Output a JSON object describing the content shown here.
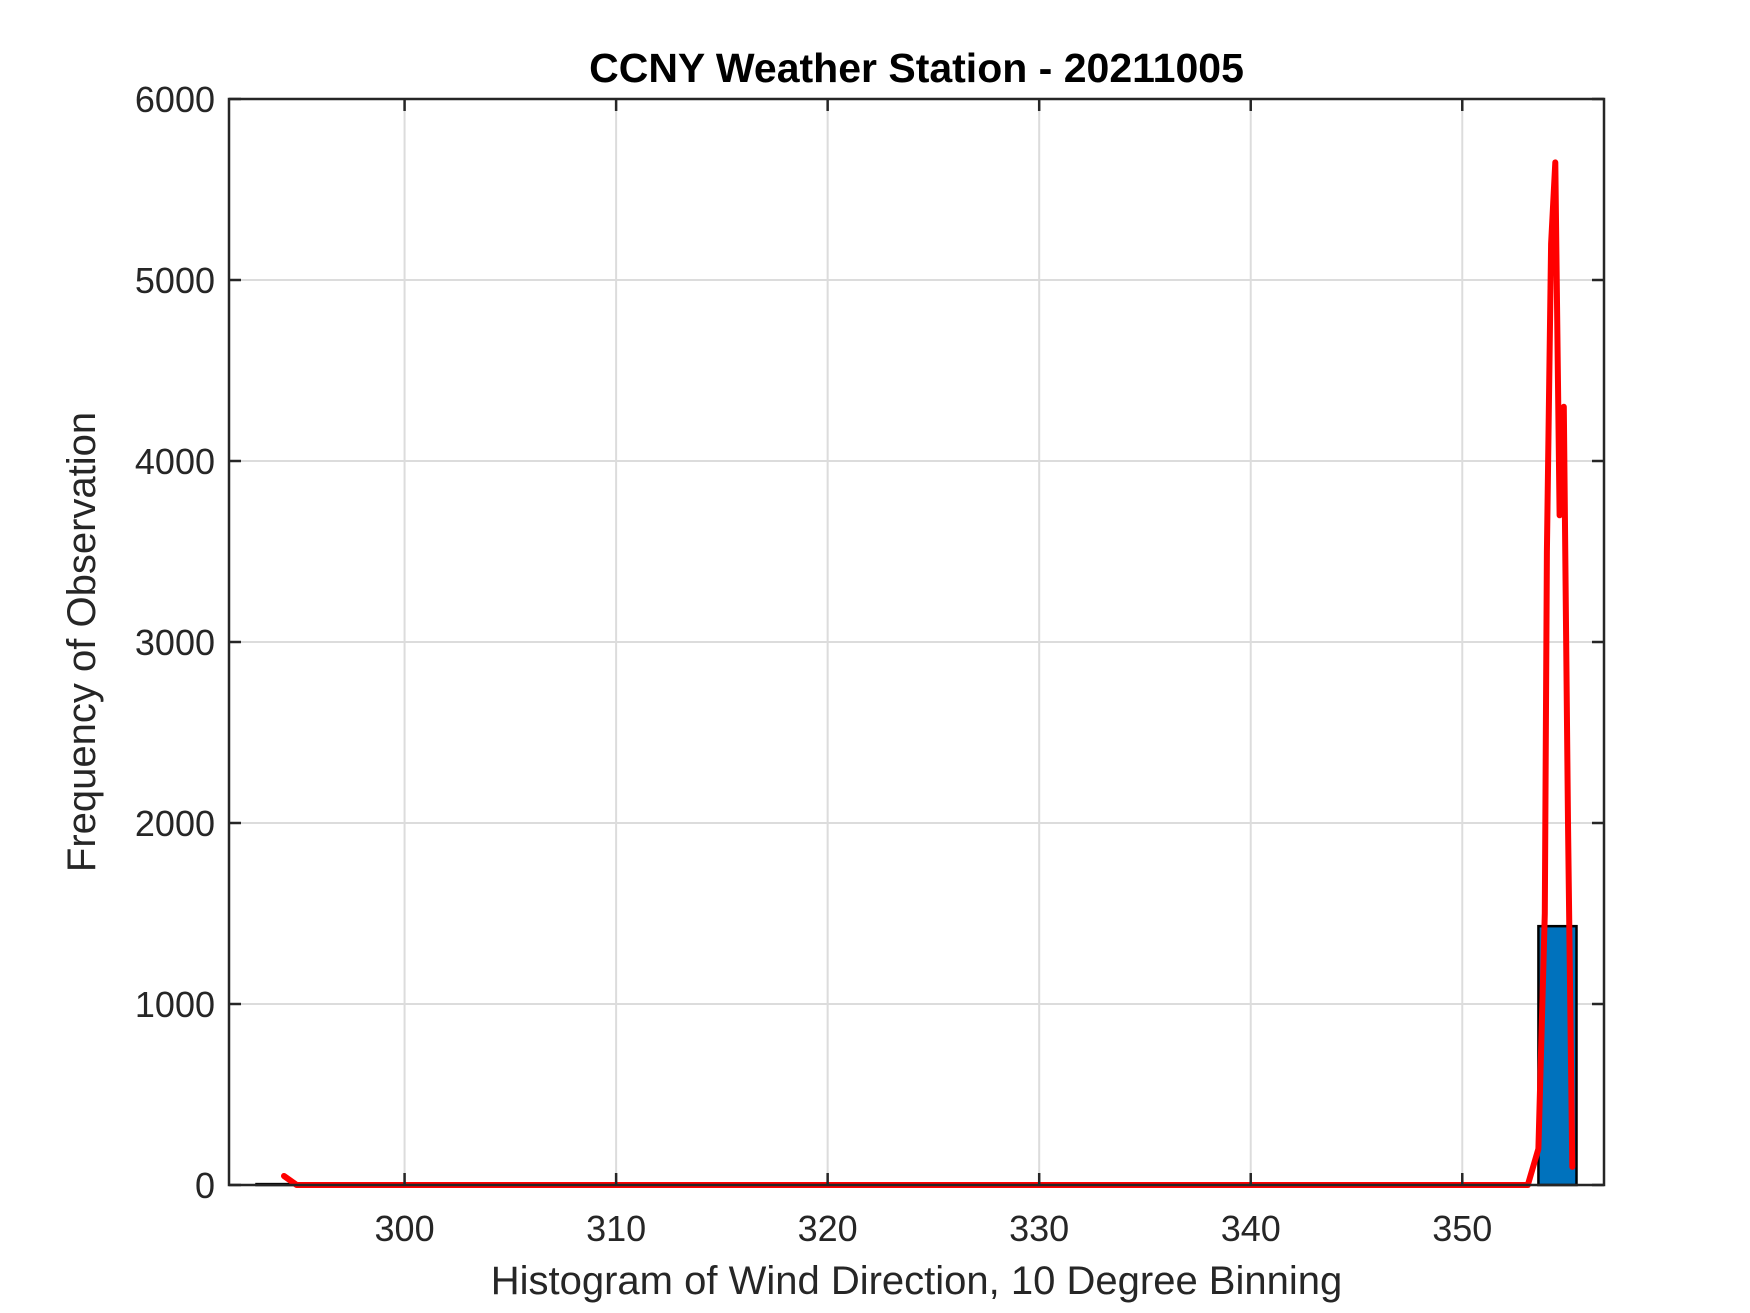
{
  "chart_data": {
    "type": "bar",
    "title": "CCNY Weather Station - 20211005",
    "xlabel": "Histogram of Wind Direction, 10 Degree Binning",
    "ylabel": "Frequency of Observation",
    "xlim": [
      291.7,
      356.7
    ],
    "ylim": [
      0,
      6000
    ],
    "xticks": [
      300,
      310,
      320,
      330,
      340,
      350
    ],
    "yticks": [
      0,
      1000,
      2000,
      3000,
      4000,
      5000,
      6000
    ],
    "grid": true,
    "bars": [
      {
        "x0": 293.0,
        "x1": 294.8,
        "value": 5
      },
      {
        "x0": 353.6,
        "x1": 355.4,
        "value": 1430
      }
    ],
    "series": [
      {
        "type": "line",
        "x": [
          294.3,
          294.9,
          353.1,
          353.6,
          353.9,
          354.0,
          354.2,
          354.4,
          354.6,
          354.8,
          355.0,
          355.2
        ],
        "values": [
          50,
          0,
          0,
          200,
          1500,
          3500,
          5200,
          5650,
          3700,
          4300,
          2000,
          100
        ]
      }
    ],
    "colors": {
      "bar_fill": "#0072BD",
      "bar_edge": "#000000",
      "line": "#FF0000",
      "axes": "#262626",
      "grid": "#dcdcdc"
    }
  }
}
